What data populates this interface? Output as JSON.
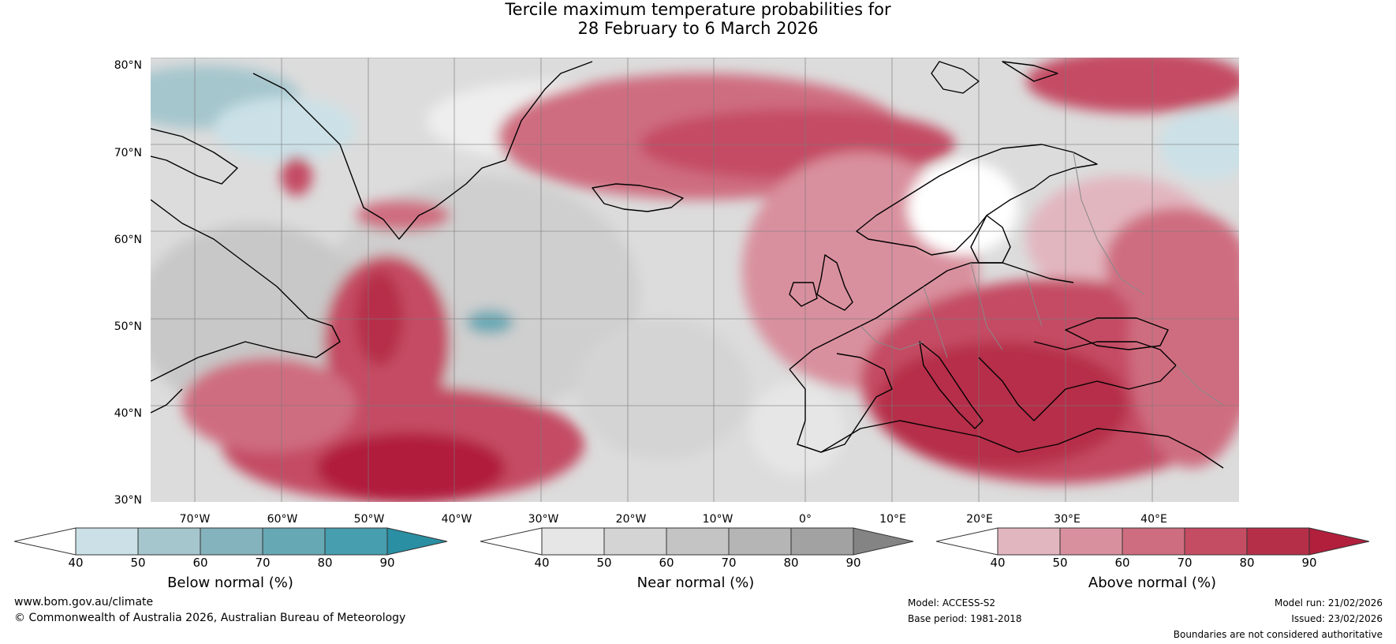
{
  "title": {
    "line1": "Tercile maximum temperature probabilities for",
    "line2": "28 February to 6 March 2026"
  },
  "map": {
    "latitude_labels": [
      "80°N",
      "70°N",
      "60°N",
      "50°N",
      "40°N",
      "30°N"
    ],
    "longitude_labels": [
      "70°W",
      "60°W",
      "50°W",
      "40°W",
      "30°W",
      "20°W",
      "10°W",
      "0°",
      "10°E",
      "20°E",
      "30°E",
      "40°E"
    ],
    "extent": {
      "lon_min": -76,
      "lon_max": 50,
      "lat_min": 30,
      "lat_max": 81
    }
  },
  "legends": [
    {
      "label": "Below normal (%)",
      "ticks": [
        "40",
        "50",
        "60",
        "70",
        "80",
        "90"
      ],
      "colors": [
        "#ffffff",
        "#cbe1e7",
        "#a5c6cd",
        "#84b3bd",
        "#66a8b4",
        "#479eae",
        "#2a8fa3"
      ]
    },
    {
      "label": "Near normal (%)",
      "ticks": [
        "40",
        "50",
        "60",
        "70",
        "80",
        "90"
      ],
      "colors": [
        "#ffffff",
        "#e6e6e6",
        "#d4d4d4",
        "#c4c4c4",
        "#b5b5b5",
        "#a2a2a2",
        "#848484"
      ]
    },
    {
      "label": "Above normal (%)",
      "ticks": [
        "40",
        "50",
        "60",
        "70",
        "80",
        "90"
      ],
      "colors": [
        "#ffffff",
        "#e2b6bf",
        "#d9909e",
        "#cf6d80",
        "#c44c63",
        "#b62f49",
        "#b11f3d"
      ]
    }
  ],
  "footer": {
    "website": "www.bom.gov.au/climate",
    "copyright": "© Commonwealth of Australia 2026, Australian Bureau of Meteorology",
    "model": "Model: ACCESS-S2",
    "base_period": "Base period: 1981-2018",
    "model_run": "Model run: 21/02/2026",
    "issued": "Issued: 23/02/2026",
    "disclaimer": "Boundaries are not considered authoritative"
  }
}
